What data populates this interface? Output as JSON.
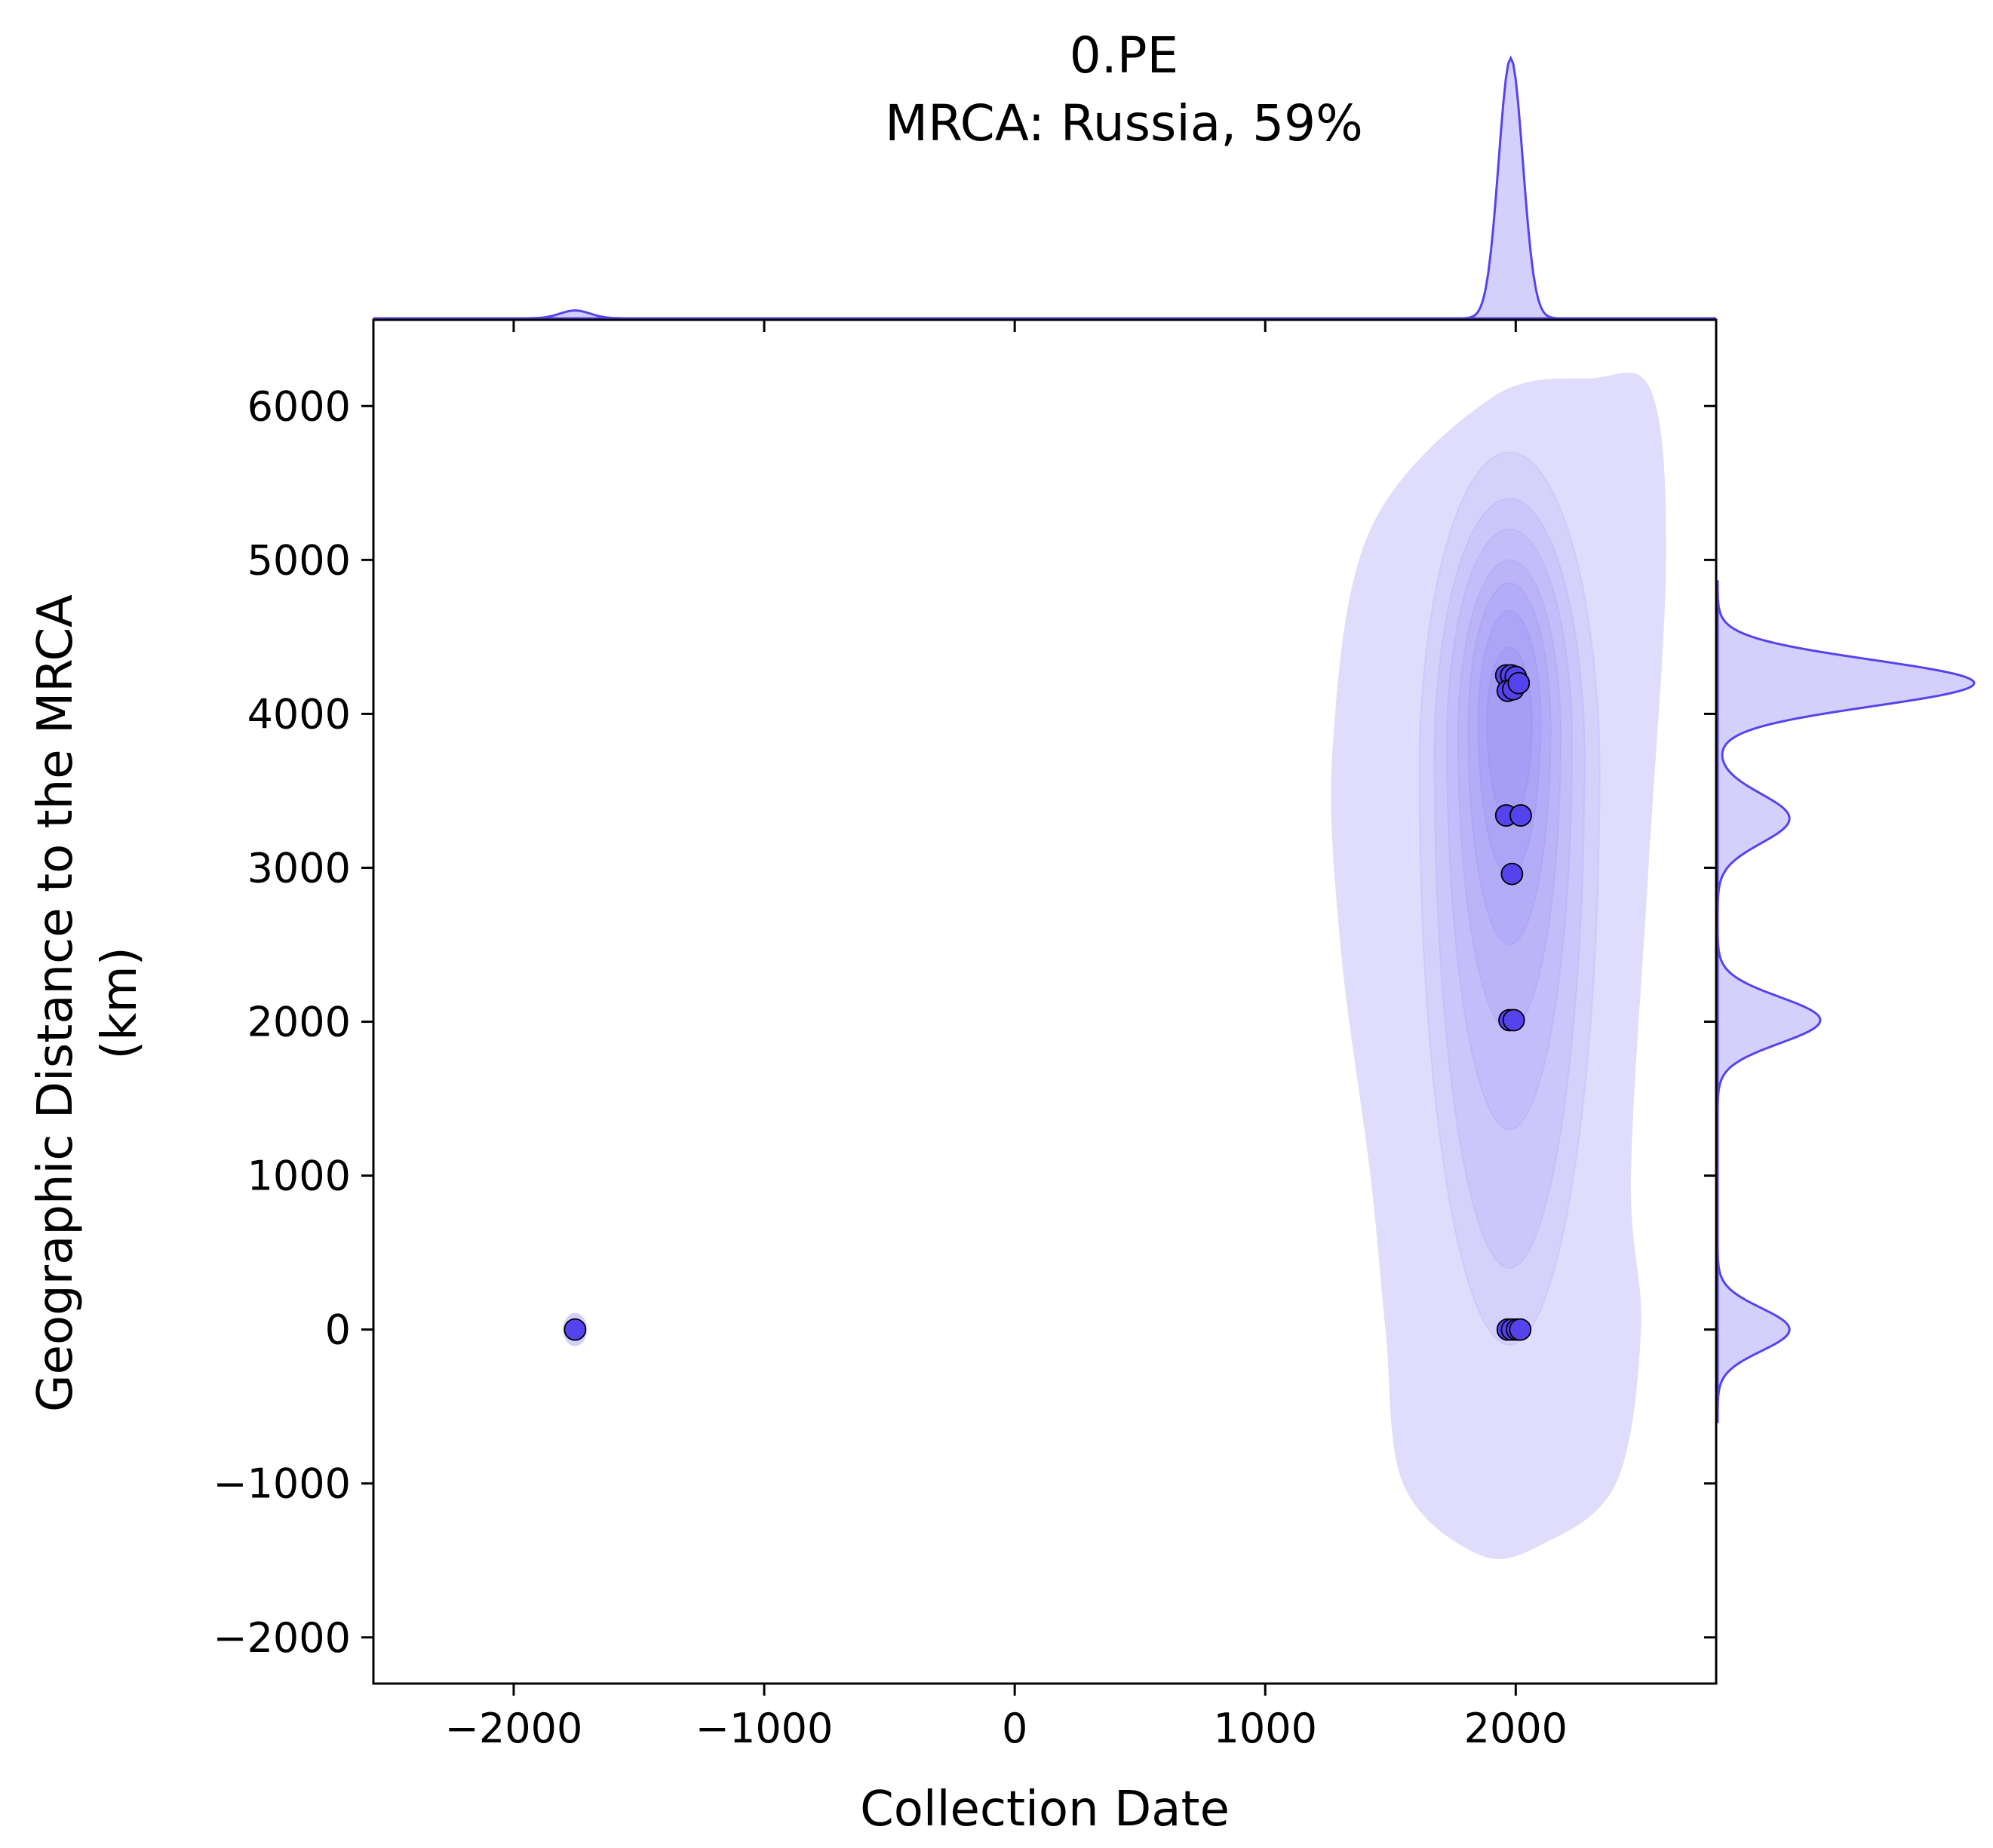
{
  "chart_data": {
    "type": "scatter",
    "title_lines": [
      "0.PE",
      "MRCA: Russia, 59%"
    ],
    "xlabel": "Collection Date",
    "ylabel_lines": [
      "Geographic Distance to the MRCA",
      "(km)"
    ],
    "xlim": [
      -2560,
      2800
    ],
    "ylim": [
      -2300,
      6560
    ],
    "xticks": [
      -2000,
      -1000,
      0,
      1000,
      2000
    ],
    "xtick_labels": [
      "−2000",
      "−1000",
      "0",
      "1000",
      "2000"
    ],
    "yticks": [
      -2000,
      -1000,
      0,
      1000,
      2000,
      3000,
      4000,
      5000,
      6000
    ],
    "ytick_labels": [
      "−2000",
      "−1000",
      "0",
      "1000",
      "2000",
      "3000",
      "4000",
      "5000",
      "6000"
    ],
    "point_color": "#5544ee",
    "kde_color": "#5544ee",
    "points": [
      {
        "x": -1755,
        "y": 0
      },
      {
        "x": 1968,
        "y": 0
      },
      {
        "x": 1985,
        "y": 0
      },
      {
        "x": 2005,
        "y": 0
      },
      {
        "x": 2018,
        "y": 0
      },
      {
        "x": 1975,
        "y": 2010
      },
      {
        "x": 1992,
        "y": 2010
      },
      {
        "x": 1985,
        "y": 2960
      },
      {
        "x": 1962,
        "y": 3340
      },
      {
        "x": 2020,
        "y": 3340
      },
      {
        "x": 1962,
        "y": 4250
      },
      {
        "x": 1982,
        "y": 4250
      },
      {
        "x": 2000,
        "y": 4240
      },
      {
        "x": 1968,
        "y": 4150
      },
      {
        "x": 1990,
        "y": 4160
      },
      {
        "x": 2012,
        "y": 4200
      }
    ]
  }
}
